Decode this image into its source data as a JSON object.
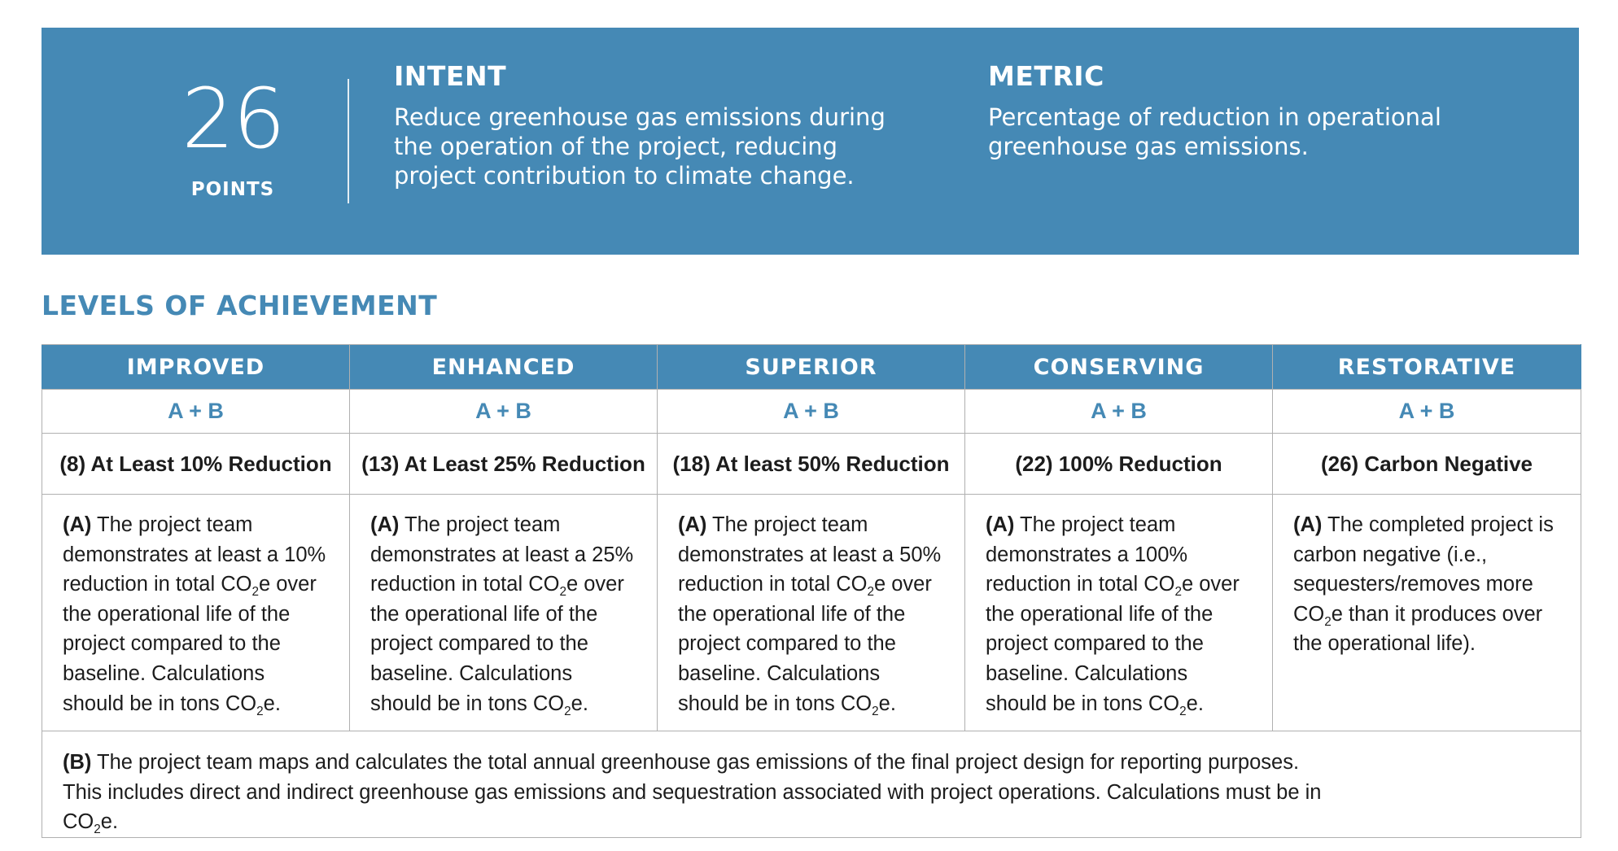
{
  "banner": {
    "points_value": "26",
    "points_label": "POINTS",
    "intent_title": "INTENT",
    "intent_text": "Reduce greenhouse gas emissions during the operation of the project, reducing project contribution to climate change.",
    "metric_title": "METRIC",
    "metric_text": "Percentage of reduction in operational greenhouse gas emissions.",
    "color": "#4589b5"
  },
  "section_title": "LEVELS OF ACHIEVEMENT",
  "levels": [
    {
      "name": "IMPROVED",
      "requirements": "A + B",
      "title": "(8) At Least 10% Reduction",
      "desc_label": "(A)",
      "desc_pre": "The project team demonstrates at least a 10% reduction in total CO",
      "desc_post": "e over the operational life of the project compared to the baseline. Calculations should be in tons CO",
      "desc_end": "e."
    },
    {
      "name": "ENHANCED",
      "requirements": "A + B",
      "title": "(13) At Least 25% Reduction",
      "desc_label": "(A)",
      "desc_pre": "The project team demonstrates at least a 25% reduction in total CO",
      "desc_post": "e over the operational life of the project compared to the baseline. Calculations should be in tons CO",
      "desc_end": "e."
    },
    {
      "name": "SUPERIOR",
      "requirements": "A + B",
      "title": "(18) At least 50% Reduction",
      "desc_label": "(A)",
      "desc_pre": "The project team demonstrates at least a 50% reduction in total CO",
      "desc_post": "e over the operational life of the project compared to the baseline. Calculations should be in tons CO",
      "desc_end": "e."
    },
    {
      "name": "CONSERVING",
      "requirements": "A + B",
      "title": "(22) 100% Reduction",
      "desc_label": "(A)",
      "desc_pre": "The project team demonstrates a 100% reduction in total CO",
      "desc_post": "e over the operational life of the project compared to the baseline. Calculations should be in tons CO",
      "desc_end": "e."
    },
    {
      "name": "RESTORATIVE",
      "requirements": "A + B",
      "title": "(26) Carbon Negative",
      "desc_label": "(A)",
      "desc_pre": "The completed project is carbon negative (i.e., sequesters/removes more CO",
      "desc_post": "e than it produces over the operational life).",
      "desc_end": ""
    }
  ],
  "subscript": "2",
  "footnote": {
    "label": "(B)",
    "text_pre": "The project team maps and calculates the total annual greenhouse gas emissions of the final project design for reporting purposes. This includes direct and indirect greenhouse gas emissions and sequestration associated with project operations. Calculations must be in CO",
    "text_end": "e."
  }
}
